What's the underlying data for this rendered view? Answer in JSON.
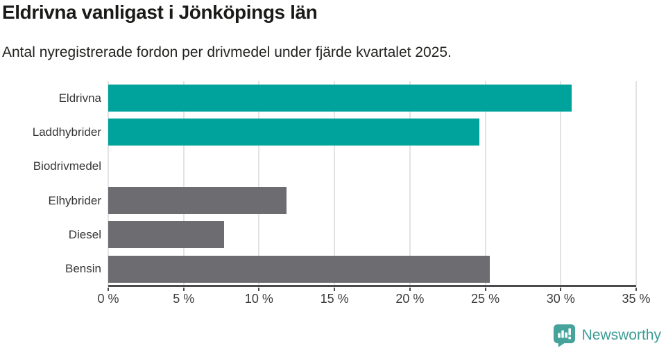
{
  "header": {
    "title": "Eldrivna vanligast i Jönköpings län",
    "subtitle": "Antal nyregistrerade fordon per drivmedel under fjärde kvartalet 2025."
  },
  "chart_data": {
    "type": "bar",
    "orientation": "horizontal",
    "title": "Eldrivna vanligast i Jönköpings län",
    "subtitle": "Antal nyregistrerade fordon per drivmedel under fjärde kvartalet 2025.",
    "categories": [
      "Eldrivna",
      "Laddhybrider",
      "Biodrivmedel",
      "Elhybrider",
      "Diesel",
      "Bensin"
    ],
    "values": [
      30.7,
      24.6,
      0,
      11.8,
      7.7,
      25.3
    ],
    "unit": "%",
    "xlim": [
      0,
      35
    ],
    "x_ticks": [
      0,
      5,
      10,
      15,
      20,
      25,
      30,
      35
    ],
    "x_tick_labels": [
      "0 %",
      "5 %",
      "10 %",
      "15 %",
      "20 %",
      "25 %",
      "30 %",
      "35 %"
    ],
    "bar_colors": [
      "#00a39b",
      "#00a39b",
      "#6c6c71",
      "#6c6c71",
      "#6c6c71",
      "#6c6c71"
    ],
    "grid": true,
    "legend": false
  },
  "colors": {
    "highlight": "#00a39b",
    "default_bar": "#6c6c71",
    "gridline": "#e3e3e3",
    "axis": "#4b4b4e",
    "logo_teal": "#3c9c94"
  },
  "footer": {
    "logo_text": "Newsworthy"
  }
}
